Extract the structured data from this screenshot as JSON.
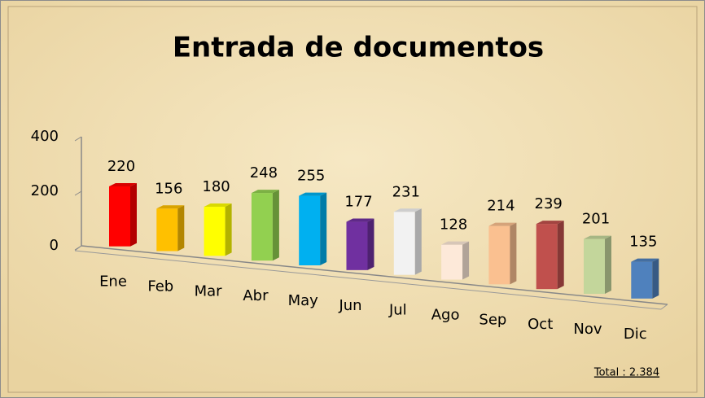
{
  "chart_data": {
    "type": "bar3d",
    "title": "Entrada de documentos",
    "categories": [
      "Ene",
      "Feb",
      "Mar",
      "Abr",
      "May",
      "Jun",
      "Jul",
      "Ago",
      "Sep",
      "Oct",
      "Nov",
      "Dic"
    ],
    "values": [
      220,
      156,
      180,
      248,
      255,
      177,
      231,
      128,
      214,
      239,
      201,
      135
    ],
    "colors": [
      "#ff0000",
      "#ffc000",
      "#ffff00",
      "#92d050",
      "#00b0f0",
      "#7030a0",
      "#f2f2f2",
      "#fde9d9",
      "#fac090",
      "#c0504d",
      "#c3d69b",
      "#4f81bd"
    ],
    "ylim": [
      0,
      400
    ],
    "yticks": [
      0,
      200,
      400
    ],
    "grid": false,
    "annotation": "Total : 2.384"
  }
}
